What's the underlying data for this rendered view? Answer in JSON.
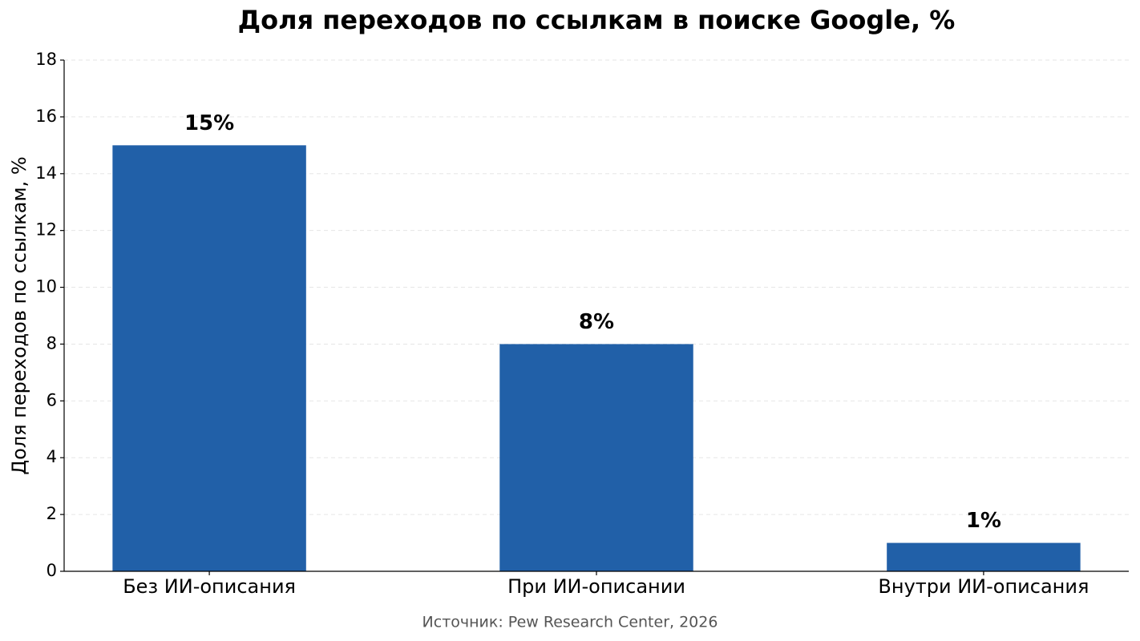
{
  "chart_data": {
    "type": "bar",
    "title": "Доля переходов по ссылкам в поиске Google, %",
    "y_label": "Доля переходов по ссылкам, %",
    "source": "Источник: Pew Research Center, 2026",
    "categories": [
      "Без ИИ-описания",
      "При ИИ-описании",
      "Внутри ИИ-описания"
    ],
    "values": [
      15,
      8,
      1
    ],
    "value_labels": [
      "15%",
      "8%",
      "1%"
    ],
    "color": "#2160a8",
    "ylim": [
      0,
      18
    ],
    "yticks": [
      0,
      2,
      4,
      6,
      8,
      10,
      12,
      14,
      16,
      18
    ],
    "grid": true
  }
}
